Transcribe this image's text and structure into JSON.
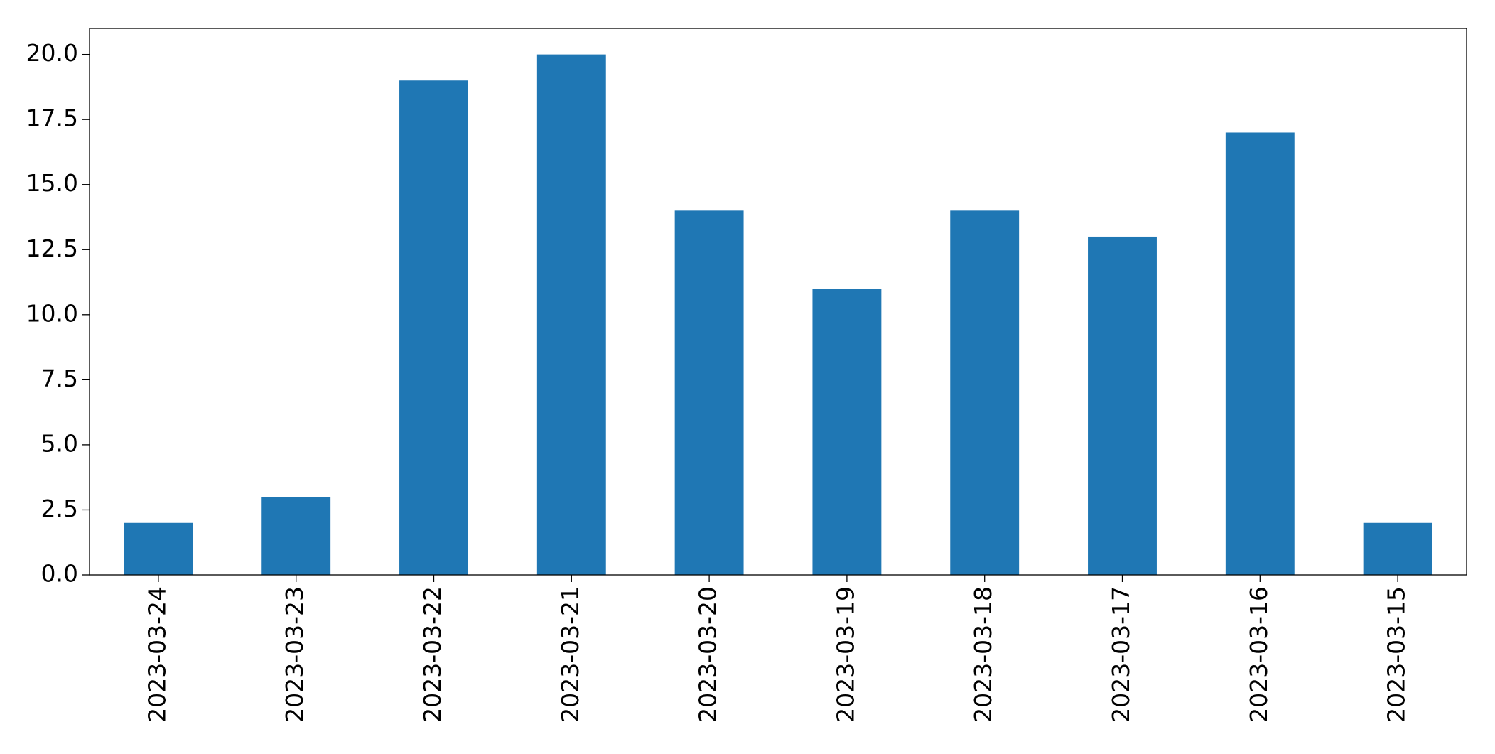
{
  "chart_data": {
    "type": "bar",
    "categories": [
      "2023-03-24",
      "2023-03-23",
      "2023-03-22",
      "2023-03-21",
      "2023-03-20",
      "2023-03-19",
      "2023-03-18",
      "2023-03-17",
      "2023-03-16",
      "2023-03-15"
    ],
    "values": [
      2,
      3,
      19,
      20,
      14,
      11,
      14,
      13,
      17,
      2
    ],
    "color": "#1f77b4",
    "ylim": [
      0,
      21
    ],
    "yticks": [
      {
        "value": 0,
        "label": "0.0"
      },
      2.5,
      {
        "value": 5,
        "label": "5.0"
      },
      7.5,
      {
        "value": 10,
        "label": "10.0"
      },
      12.5,
      {
        "value": 15,
        "label": "15.0"
      },
      17.5,
      {
        "value": 20,
        "label": "20.0"
      }
    ],
    "grid": false
  }
}
